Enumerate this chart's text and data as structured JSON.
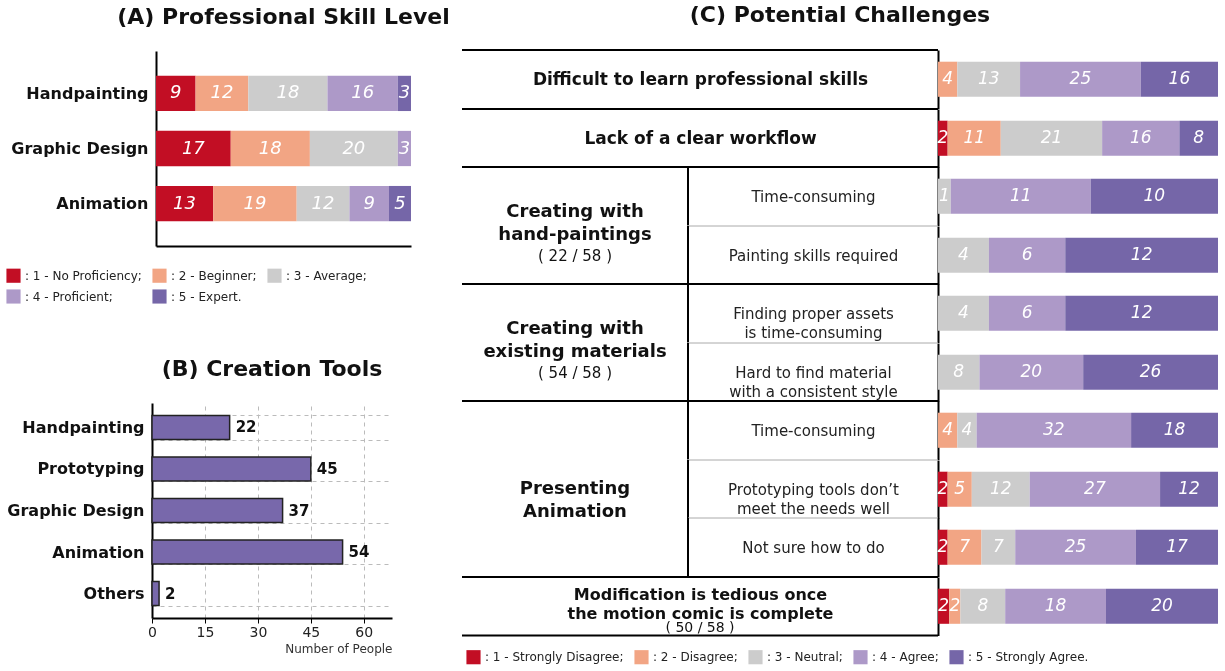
{
  "chart_data": [
    {
      "type": "bar",
      "title": "(A) Professional Skill Level",
      "orientation": "horizontal",
      "stacked": true,
      "categories": [
        "Handpainting",
        "Graphic Design",
        "Animation"
      ],
      "series": [
        {
          "name": ": 1 - No Proficiency;",
          "color": "#c20e24",
          "values": [
            9,
            17,
            13
          ]
        },
        {
          "name": ": 2 - Beginner;",
          "color": "#f2a584",
          "values": [
            12,
            18,
            19
          ]
        },
        {
          "name": ": 3 - Average;",
          "color": "#cccccc",
          "values": [
            18,
            20,
            12
          ]
        },
        {
          "name": ": 4 - Proficient;",
          "color": "#ad99c8",
          "values": [
            16,
            3,
            9
          ]
        },
        {
          "name": ": 5 - Expert.",
          "color": "#7566a8",
          "values": [
            3,
            null,
            5
          ]
        }
      ],
      "xlim": [
        0,
        58
      ],
      "tick_labels": "y",
      "data_labels": true,
      "legend": "bottom"
    },
    {
      "type": "bar",
      "title": "(B) Creation Tools",
      "orientation": "horizontal",
      "categories": [
        "Handpainting",
        "Prototyping",
        "Graphic Design",
        "Animation",
        "Others"
      ],
      "values": [
        22,
        45,
        37,
        54,
        2
      ],
      "color": "#7868ab",
      "xlim": [
        0,
        68
      ],
      "xticks": [
        0,
        15,
        30,
        45,
        60
      ],
      "xlabel": "Number of People",
      "grid": true,
      "data_labels": true
    },
    {
      "type": "bar",
      "title": "(C) Potential Challenges",
      "orientation": "horizontal",
      "stacked": true,
      "categories": [
        "Difficult to learn professional skills"
      ],
      "series": [
        {
          "color": "#f2a584",
          "values": [
            4
          ]
        },
        {
          "color": "#cccccc",
          "values": [
            13
          ]
        },
        {
          "color": "#ad99c8",
          "values": [
            25
          ]
        },
        {
          "color": "#7566a8",
          "values": [
            16
          ]
        }
      ],
      "xlim": [
        0,
        58
      ],
      "tick_labels": "y",
      "data_labels": true
    },
    {
      "type": "bar",
      "orientation": "horizontal",
      "stacked": true,
      "categories": [
        "Lack of a clear workflow"
      ],
      "series": [
        {
          "color": "#c20e24",
          "values": [
            2
          ]
        },
        {
          "color": "#f2a584",
          "values": [
            11
          ]
        },
        {
          "color": "#cccccc",
          "values": [
            21
          ]
        },
        {
          "color": "#ad99c8",
          "values": [
            16
          ]
        },
        {
          "color": "#7566a8",
          "values": [
            8
          ]
        }
      ],
      "xlim": [
        0,
        58
      ],
      "tick_labels": "y",
      "data_labels": true
    },
    {
      "type": "bar",
      "orientation": "horizontal",
      "stacked": true,
      "categories": [
        "Time-consuming"
      ],
      "series": [
        {
          "color": "#cccccc",
          "values": [
            1
          ]
        },
        {
          "color": "#ad99c8",
          "values": [
            11
          ]
        },
        {
          "color": "#7566a8",
          "values": [
            10
          ]
        }
      ],
      "xlim": [
        0,
        22
      ],
      "tick_labels": "y",
      "data_labels": true,
      "annotations": [
        "Creating with hand-paintings",
        "( 22 / 58 )"
      ]
    },
    {
      "type": "bar",
      "orientation": "horizontal",
      "stacked": true,
      "categories": [
        "Painting skills required"
      ],
      "series": [
        {
          "color": "#cccccc",
          "values": [
            4
          ]
        },
        {
          "color": "#ad99c8",
          "values": [
            6
          ]
        },
        {
          "color": "#7566a8",
          "values": [
            12
          ]
        }
      ],
      "xlim": [
        0,
        22
      ],
      "tick_labels": "y",
      "data_labels": true
    },
    {
      "type": "bar",
      "orientation": "horizontal",
      "stacked": true,
      "categories": [
        "Finding proper assets is time-consuming"
      ],
      "series": [
        {
          "color": "#cccccc",
          "values": [
            4
          ]
        },
        {
          "color": "#ad99c8",
          "values": [
            6
          ]
        },
        {
          "color": "#7566a8",
          "values": [
            12
          ]
        }
      ],
      "xlim": [
        0,
        22
      ],
      "tick_labels": "y",
      "data_labels": true,
      "annotations": [
        "Creating with existing materials",
        "( 54 / 58 )"
      ]
    },
    {
      "type": "bar",
      "orientation": "horizontal",
      "stacked": true,
      "categories": [
        "Hard to find material with a consistent style"
      ],
      "series": [
        {
          "color": "#cccccc",
          "values": [
            8
          ]
        },
        {
          "color": "#ad99c8",
          "values": [
            20
          ]
        },
        {
          "color": "#7566a8",
          "values": [
            26
          ]
        }
      ],
      "xlim": [
        0,
        54
      ],
      "tick_labels": "y",
      "data_labels": true
    },
    {
      "type": "bar",
      "orientation": "horizontal",
      "stacked": true,
      "categories": [
        "Time-consuming"
      ],
      "series": [
        {
          "color": "#f2a584",
          "values": [
            4
          ]
        },
        {
          "color": "#cccccc",
          "values": [
            4
          ]
        },
        {
          "color": "#ad99c8",
          "values": [
            32
          ]
        },
        {
          "color": "#7566a8",
          "values": [
            18
          ]
        }
      ],
      "xlim": [
        0,
        58
      ],
      "tick_labels": "y",
      "data_labels": true,
      "annotations": [
        "Presenting Animation"
      ]
    },
    {
      "type": "bar",
      "orientation": "horizontal",
      "stacked": true,
      "categories": [
        "Prototyping tools don’t meet the needs well"
      ],
      "series": [
        {
          "color": "#c20e24",
          "values": [
            2
          ]
        },
        {
          "color": "#f2a584",
          "values": [
            5
          ]
        },
        {
          "color": "#cccccc",
          "values": [
            12
          ]
        },
        {
          "color": "#ad99c8",
          "values": [
            27
          ]
        },
        {
          "color": "#7566a8",
          "values": [
            12
          ]
        }
      ],
      "xlim": [
        0,
        58
      ],
      "tick_labels": "y",
      "data_labels": true
    },
    {
      "type": "bar",
      "orientation": "horizontal",
      "stacked": true,
      "categories": [
        "Not sure how to do"
      ],
      "series": [
        {
          "color": "#c20e24",
          "values": [
            2
          ]
        },
        {
          "color": "#f2a584",
          "values": [
            7
          ]
        },
        {
          "color": "#cccccc",
          "values": [
            7
          ]
        },
        {
          "color": "#ad99c8",
          "values": [
            25
          ]
        },
        {
          "color": "#7566a8",
          "values": [
            17
          ]
        }
      ],
      "xlim": [
        0,
        58
      ],
      "tick_labels": "y",
      "data_labels": true
    },
    {
      "type": "bar",
      "orientation": "horizontal",
      "stacked": true,
      "categories": [
        "Modification is tedious once the motion comic is complete"
      ],
      "series": [
        {
          "name": ": 1 - Strongly Disagree;",
          "color": "#c20e24",
          "values": [
            2
          ]
        },
        {
          "name": ": 2 - Disagree;",
          "color": "#f2a584",
          "values": [
            2
          ]
        },
        {
          "name": ": 3 - Neutral;",
          "color": "#cccccc",
          "values": [
            8
          ]
        },
        {
          "name": ": 4 - Agree;",
          "color": "#ad99c8",
          "values": [
            18
          ]
        },
        {
          "name": ": 5 - Strongly Agree.",
          "color": "#7566a8",
          "values": [
            20
          ]
        }
      ],
      "xlim": [
        0,
        50
      ],
      "tick_labels": "y",
      "data_labels": true,
      "annotations": [
        "( 50 / 58 )"
      ],
      "legend": "bottom"
    }
  ]
}
